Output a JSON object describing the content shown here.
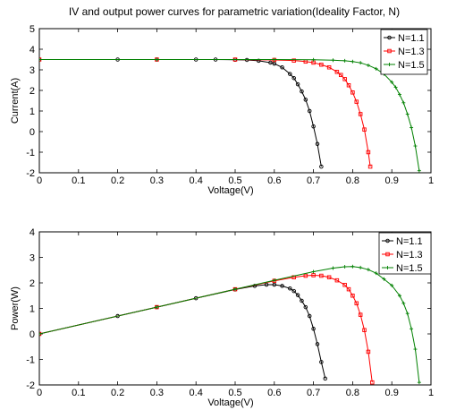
{
  "figure": {
    "title": "IV and output power curves for parametric variation(Ideality Factor, N)"
  },
  "chart_data": [
    {
      "type": "line",
      "xlabel": "Voltage(V)",
      "ylabel": "Current(A)",
      "xlim": [
        0,
        1
      ],
      "ylim": [
        -2,
        5
      ],
      "xticks": [
        "0",
        "0.1",
        "0.2",
        "0.3",
        "0.4",
        "0.5",
        "0.6",
        "0.7",
        "0.8",
        "0.9",
        "1"
      ],
      "yticks": [
        "-2",
        "-1",
        "0",
        "1",
        "2",
        "3",
        "4",
        "5"
      ],
      "grid": false,
      "legend_position": "top-right",
      "series": [
        {
          "name": "N=1.1",
          "color": "#000000",
          "marker": "circle",
          "x": [
            0,
            0.2,
            0.3,
            0.4,
            0.45,
            0.5,
            0.53,
            0.56,
            0.59,
            0.6,
            0.62,
            0.64,
            0.65,
            0.66,
            0.67,
            0.68,
            0.69,
            0.7,
            0.71,
            0.72
          ],
          "y": [
            3.5,
            3.5,
            3.5,
            3.5,
            3.5,
            3.49,
            3.48,
            3.44,
            3.35,
            3.3,
            3.12,
            2.8,
            2.6,
            2.3,
            1.95,
            1.55,
            1.0,
            0.25,
            -0.6,
            -1.7
          ]
        },
        {
          "name": "N=1.3",
          "color": "#ff0000",
          "marker": "square",
          "x": [
            0,
            0.3,
            0.5,
            0.6,
            0.65,
            0.68,
            0.7,
            0.72,
            0.74,
            0.76,
            0.77,
            0.78,
            0.79,
            0.8,
            0.81,
            0.82,
            0.83,
            0.84,
            0.845
          ],
          "y": [
            3.5,
            3.5,
            3.5,
            3.48,
            3.45,
            3.4,
            3.35,
            3.25,
            3.12,
            2.9,
            2.75,
            2.55,
            2.25,
            1.9,
            1.45,
            0.85,
            0.1,
            -1.0,
            -1.7
          ]
        },
        {
          "name": "N=1.5",
          "color": "#008000",
          "marker": "plus",
          "x": [
            0,
            0.3,
            0.6,
            0.7,
            0.75,
            0.78,
            0.8,
            0.82,
            0.84,
            0.86,
            0.88,
            0.9,
            0.91,
            0.92,
            0.93,
            0.94,
            0.95,
            0.96,
            0.97
          ],
          "y": [
            3.5,
            3.5,
            3.5,
            3.49,
            3.47,
            3.44,
            3.4,
            3.34,
            3.22,
            3.05,
            2.8,
            2.4,
            2.15,
            1.8,
            1.4,
            0.85,
            0.2,
            -0.7,
            -1.9
          ]
        }
      ]
    },
    {
      "type": "line",
      "xlabel": "Voltage(V)",
      "ylabel": "Power(W)",
      "xlim": [
        0,
        1
      ],
      "ylim": [
        -2,
        4
      ],
      "xticks": [
        "0",
        "0.1",
        "0.2",
        "0.3",
        "0.4",
        "0.5",
        "0.6",
        "0.7",
        "0.8",
        "0.9",
        "1"
      ],
      "yticks": [
        "-2",
        "-1",
        "0",
        "1",
        "2",
        "3",
        "4"
      ],
      "grid": false,
      "legend_position": "top-right",
      "series": [
        {
          "name": "N=1.1",
          "color": "#000000",
          "marker": "circle",
          "x": [
            0,
            0.2,
            0.3,
            0.4,
            0.5,
            0.55,
            0.58,
            0.6,
            0.62,
            0.64,
            0.65,
            0.66,
            0.67,
            0.68,
            0.69,
            0.7,
            0.71,
            0.72,
            0.73
          ],
          "y": [
            0,
            0.7,
            1.05,
            1.4,
            1.74,
            1.88,
            1.93,
            1.93,
            1.88,
            1.78,
            1.68,
            1.52,
            1.3,
            1.05,
            0.7,
            0.2,
            -0.4,
            -1.1,
            -1.75
          ]
        },
        {
          "name": "N=1.3",
          "color": "#ff0000",
          "marker": "square",
          "x": [
            0,
            0.3,
            0.5,
            0.6,
            0.65,
            0.68,
            0.7,
            0.72,
            0.74,
            0.76,
            0.78,
            0.79,
            0.8,
            0.81,
            0.82,
            0.83,
            0.84,
            0.85
          ],
          "y": [
            0,
            1.05,
            1.75,
            2.08,
            2.22,
            2.28,
            2.3,
            2.28,
            2.22,
            2.1,
            1.92,
            1.75,
            1.5,
            1.2,
            0.75,
            0.15,
            -0.7,
            -1.9
          ]
        },
        {
          "name": "N=1.5",
          "color": "#008000",
          "marker": "plus",
          "x": [
            0,
            0.3,
            0.5,
            0.6,
            0.7,
            0.75,
            0.78,
            0.8,
            0.82,
            0.84,
            0.86,
            0.88,
            0.9,
            0.92,
            0.93,
            0.94,
            0.95,
            0.96,
            0.97
          ],
          "y": [
            0,
            1.05,
            1.75,
            2.1,
            2.44,
            2.58,
            2.63,
            2.64,
            2.6,
            2.52,
            2.38,
            2.15,
            1.9,
            1.5,
            1.2,
            0.8,
            0.2,
            -0.6,
            -1.9
          ]
        }
      ]
    }
  ]
}
